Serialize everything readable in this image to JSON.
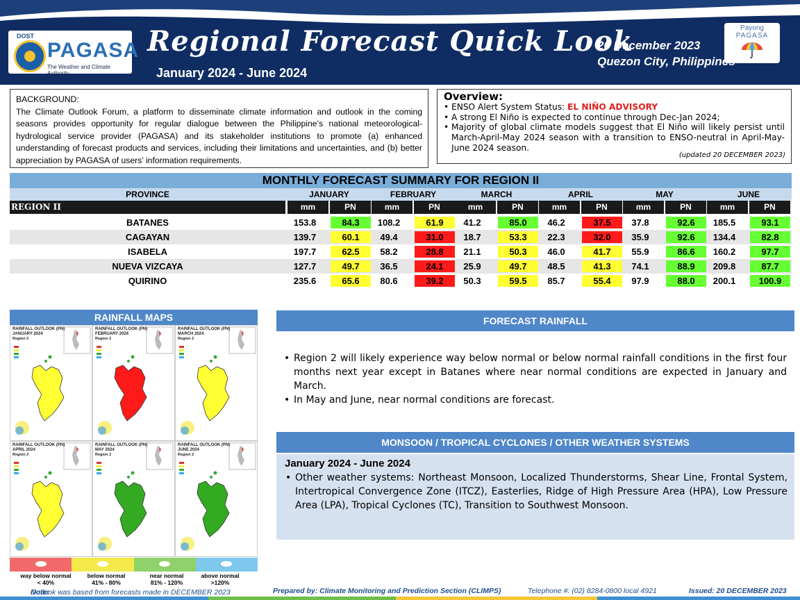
{
  "header": {
    "logo_dost": "DOST",
    "logo_name": "PAGASA",
    "logo_tagline": "The Weather and Climate Authority",
    "title": "Regional Forecast Quick Look",
    "period": "January 2024 - June 2024",
    "date": "20 December 2023",
    "location": "Quezon City, Philippines",
    "payong_line1": "Payong",
    "payong_line2": "PAGASA"
  },
  "background": {
    "title": "BACKGROUND:",
    "text": "The Climate Outlook Forum, a platform to disseminate climate information and outlook in the coming seasons provides opportunity for regular dialogue between the Philippine’s national meteorological-hydrological service provider (PAGASA) and its stakeholder institutions to promote (a) enhanced understanding of forecast products and services, including their limitations and uncertainties, and (b) better appreciation by PAGASA of users’ information requirements."
  },
  "overview": {
    "title": "Overview:",
    "enso_label": "ENSO Alert System Status: ",
    "enso_status": "EL NIÑO ADVISORY",
    "bullet2": "A strong El Niño is expected to continue through Dec-Jan 2024;",
    "bullet3": "Majority of global climate models suggest that El Niño will likely persist until March-April-May 2024 season with a transition to ENSO-neutral in April-May-June 2024 season.",
    "updated": "(updated 20 DECEMBER 2023)"
  },
  "table": {
    "title": "MONTHLY FORECAST SUMMARY FOR REGION II",
    "province_header": "PROVINCE",
    "region_label": "REGION II",
    "months": [
      "JANUARY",
      "FEBRUARY",
      "MARCH",
      "APRIL",
      "MAY",
      "JUNE"
    ],
    "mm_label": "mm",
    "pn_label": "PN",
    "rows": [
      {
        "province": "BATANES",
        "values": [
          [
            "153.8",
            "84.3",
            "green"
          ],
          [
            "108.2",
            "61.9",
            "yellow"
          ],
          [
            "41.2",
            "85.0",
            "green"
          ],
          [
            "46.2",
            "37.5",
            "red"
          ],
          [
            "37.8",
            "92.6",
            "green"
          ],
          [
            "185.5",
            "93.1",
            "green"
          ]
        ]
      },
      {
        "province": "CAGAYAN",
        "values": [
          [
            "139.7",
            "60.1",
            "yellow"
          ],
          [
            "49.4",
            "31.0",
            "red"
          ],
          [
            "18.7",
            "53.3",
            "yellow"
          ],
          [
            "22.3",
            "32.0",
            "red"
          ],
          [
            "35.9",
            "92.6",
            "green"
          ],
          [
            "134.4",
            "82.8",
            "green"
          ]
        ]
      },
      {
        "province": "ISABELA",
        "values": [
          [
            "197.7",
            "62.5",
            "yellow"
          ],
          [
            "58.2",
            "28.8",
            "red"
          ],
          [
            "21.1",
            "50.3",
            "yellow"
          ],
          [
            "46.0",
            "41.7",
            "yellow"
          ],
          [
            "55.9",
            "86.6",
            "green"
          ],
          [
            "160.2",
            "97.7",
            "green"
          ]
        ]
      },
      {
        "province": "NUEVA VIZCAYA",
        "values": [
          [
            "127.7",
            "49.7",
            "yellow"
          ],
          [
            "36.5",
            "24.1",
            "red"
          ],
          [
            "25.9",
            "49.7",
            "yellow"
          ],
          [
            "48.5",
            "41.3",
            "yellow"
          ],
          [
            "74.1",
            "88.9",
            "green"
          ],
          [
            "209.8",
            "87.7",
            "green"
          ]
        ]
      },
      {
        "province": "QUIRINO",
        "values": [
          [
            "235.6",
            "65.6",
            "yellow"
          ],
          [
            "80.6",
            "39.2",
            "red"
          ],
          [
            "50.3",
            "59.5",
            "yellow"
          ],
          [
            "85.7",
            "55.4",
            "yellow"
          ],
          [
            "97.9",
            "88.0",
            "green"
          ],
          [
            "200.1",
            "100.9",
            "green"
          ]
        ]
      }
    ]
  },
  "maps": {
    "title": "RAINFALL MAPS",
    "panels": [
      {
        "heading": "RAINFALL OUTLOOK (PN)",
        "month": "JANUARY 2024",
        "region": "Region 2",
        "color": "#ffff33"
      },
      {
        "heading": "RAINFALL OUTLOOK (PN)",
        "month": "FEBRUARY 2024",
        "region": "Region 2",
        "color": "#ff1a1a"
      },
      {
        "heading": "RAINFALL OUTLOOK (PN)",
        "month": "MARCH 2024",
        "region": "Region 2",
        "color": "#ffff33"
      },
      {
        "heading": "RAINFALL OUTLOOK (PN)",
        "month": "APRIL 2024",
        "region": "Region 2",
        "color": "#ffff33"
      },
      {
        "heading": "RAINFALL OUTLOOK (PN)",
        "month": "MAY 2024",
        "region": "Region 2",
        "color": "#33aa22"
      },
      {
        "heading": "RAINFALL OUTLOOK (PN)",
        "month": "JUNE 2024",
        "region": "Region 2",
        "color": "#33aa22"
      }
    ],
    "legend": [
      {
        "label": "way below normal",
        "range": "< 40%",
        "color": "#f06a6a"
      },
      {
        "label": "below normal",
        "range": "41%  -  80%",
        "color": "#f3e94a"
      },
      {
        "label": "near normal",
        "range": "81% - 120%",
        "color": "#8fd16a"
      },
      {
        "label": "above normal",
        "range": ">120%",
        "color": "#7ec8ee"
      }
    ]
  },
  "forecast_rainfall": {
    "title": "FORECAST RAINFALL",
    "bullets": [
      "Region 2 will likely experience way below normal or below normal rainfall conditions in the first four months next year except in Batanes where near normal conditions are expected in January and March.",
      "In May and June, near normal conditions are forecast."
    ]
  },
  "monsoon": {
    "title": "MONSOON  / TROPICAL CYCLONES / OTHER WEATHER SYSTEMS",
    "period": "January 2024 - June 2024",
    "bullet": "Other weather systems: Northeast Monsoon, Localized Thunderstorms, Shear Line, Frontal System, Intertropical Convergence Zone (ITCZ), Easterlies, Ridge of High Pressure Area (HPA), Low Pressure Area (LPA), Tropical Cyclones (TC), Transition to Southwest Monsoon."
  },
  "footer": {
    "note_label": "Note:",
    "note_text": " Outlook was based from forecasts made in DECEMBER 2023",
    "prepared": "Prepared by: Climate Monitoring and Prediction Section (CLIMPS)",
    "telephone": "Telephone #: (02) 8284-0800 local 4921",
    "issued": "Issued: 20 DECEMBER 2023"
  }
}
